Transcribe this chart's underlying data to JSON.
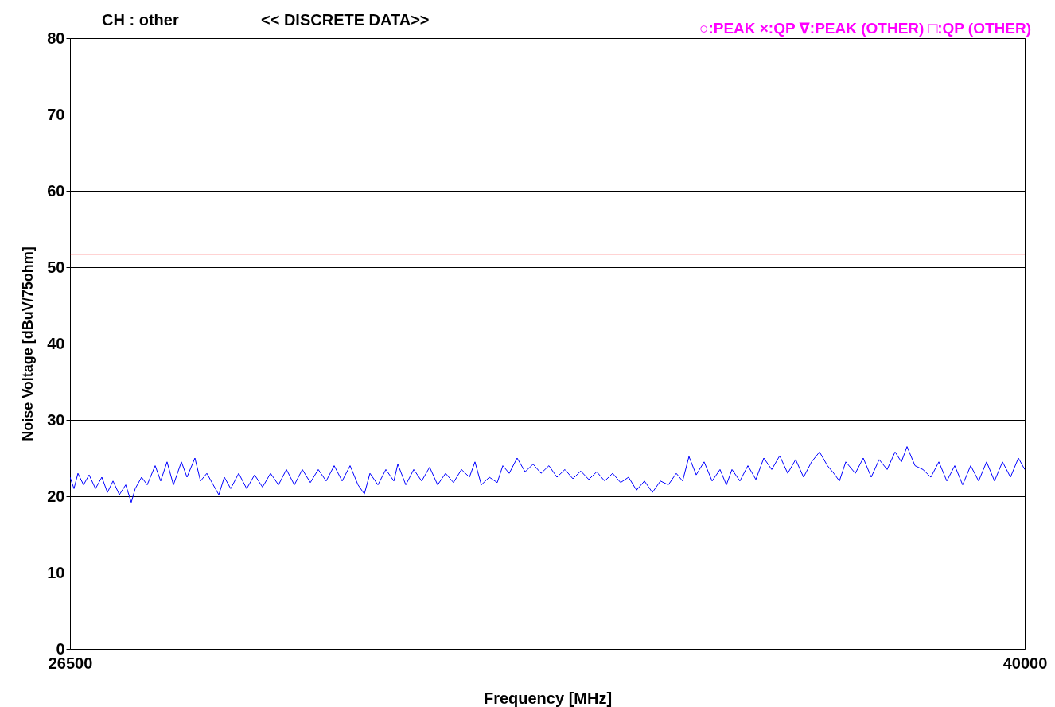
{
  "chart_data": {
    "type": "line",
    "title": "CH : other",
    "subtitle": "<< DISCRETE DATA>>",
    "xlabel": "Frequency [MHz]",
    "ylabel": "Noise Voltage [dBuV/75ohm]",
    "annotations": [
      "○:PEAK   ×:QP   ∇:PEAK (OTHER) □:QP (OTHER)"
    ],
    "xlim": [
      26500,
      40000
    ],
    "xticks": [
      26500,
      40000
    ],
    "ylim": [
      0,
      80
    ],
    "yticks": [
      0,
      10,
      20,
      30,
      40,
      50,
      60,
      70,
      80
    ],
    "grid": "y",
    "marker": "none",
    "line_style": "solid",
    "ref_lines": [
      {
        "axis": "y",
        "value": 51.7,
        "color": "#ff0000"
      }
    ],
    "series": [
      {
        "color": "#0000ff",
        "x": [
          26500,
          26556,
          26612,
          26691,
          26770,
          26860,
          26950,
          27029,
          27108,
          27198,
          27288,
          27366,
          27422,
          27512,
          27591,
          27704,
          27782,
          27872,
          27962,
          28075,
          28154,
          28266,
          28345,
          28435,
          28525,
          28604,
          28682,
          28772,
          28885,
          28998,
          29110,
          29222,
          29335,
          29448,
          29560,
          29672,
          29785,
          29898,
          30010,
          30122,
          30235,
          30348,
          30460,
          30572,
          30662,
          30741,
          30854,
          30966,
          31079,
          31135,
          31248,
          31360,
          31472,
          31585,
          31698,
          31810,
          31922,
          32035,
          32148,
          32226,
          32316,
          32429,
          32541,
          32620,
          32710,
          32822,
          32935,
          33048,
          33160,
          33272,
          33385,
          33498,
          33610,
          33722,
          33835,
          33948,
          34060,
          34172,
          34285,
          34398,
          34510,
          34622,
          34735,
          34848,
          34960,
          35072,
          35162,
          35252,
          35354,
          35466,
          35579,
          35691,
          35781,
          35860,
          35972,
          36085,
          36198,
          36310,
          36422,
          36535,
          36648,
          36760,
          36872,
          36985,
          37098,
          37210,
          37300,
          37379,
          37469,
          37604,
          37716,
          37829,
          37941,
          38054,
          38166,
          38256,
          38335,
          38448,
          38560,
          38672,
          38785,
          38898,
          39010,
          39122,
          39235,
          39348,
          39460,
          39572,
          39685,
          39798,
          39910,
          40000
        ],
        "values": [
          22.5,
          21,
          23,
          21.5,
          22.8,
          21,
          22.5,
          20.5,
          22,
          20.2,
          21.5,
          19.2,
          21,
          22.5,
          21.5,
          24,
          22,
          24.5,
          21.5,
          24.5,
          22.5,
          25,
          22,
          23,
          21.5,
          20.2,
          22.5,
          21,
          23,
          21,
          22.8,
          21.2,
          23,
          21.5,
          23.5,
          21.5,
          23.5,
          21.8,
          23.5,
          22,
          24,
          22,
          24,
          21.5,
          20.3,
          23,
          21.5,
          23.5,
          22,
          24.2,
          21.5,
          23.5,
          22,
          23.8,
          21.5,
          23,
          21.8,
          23.5,
          22.5,
          24.5,
          21.5,
          22.5,
          21.8,
          24,
          23,
          25,
          23.2,
          24.2,
          23,
          24,
          22.5,
          23.5,
          22.3,
          23.3,
          22.2,
          23.2,
          22,
          23,
          21.8,
          22.5,
          20.8,
          22,
          20.5,
          22,
          21.5,
          23,
          22,
          25.2,
          22.8,
          24.5,
          22,
          23.5,
          21.5,
          23.5,
          22,
          24,
          22.2,
          25,
          23.5,
          25.3,
          23,
          24.8,
          22.5,
          24.5,
          25.8,
          24,
          23,
          22,
          24.5,
          23,
          25,
          22.5,
          24.8,
          23.5,
          25.8,
          24.5,
          26.5,
          24,
          23.5,
          22.5,
          24.5,
          22,
          24,
          21.5,
          24,
          22,
          24.5,
          22,
          24.5,
          22.5,
          25,
          23.5
        ]
      }
    ]
  }
}
